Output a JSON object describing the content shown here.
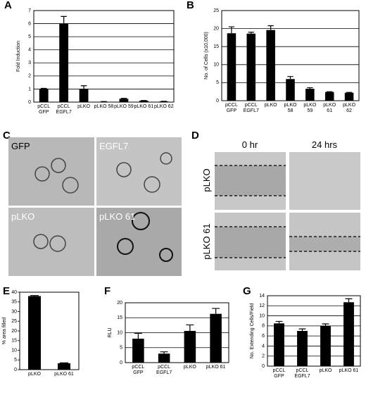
{
  "chart_data": [
    {
      "type": "bar",
      "panel_label": "A",
      "ylabel": "Fold Induction",
      "categories": [
        "pCCL\nGFP",
        "pCCL\nEGFL7",
        "pLKO",
        "pLKO 58",
        "pLKO 59",
        "pLKO 61",
        "pLKO 62"
      ],
      "values": [
        1,
        6,
        1,
        0.03,
        0.25,
        0.1,
        0.05
      ],
      "errors": [
        0.05,
        0.55,
        0.25,
        0.01,
        0.04,
        0.02,
        0.01
      ],
      "color": "#000000",
      "ylim": [
        0,
        7
      ],
      "yticks": [
        0,
        1,
        2,
        3,
        4,
        5,
        6,
        7
      ],
      "grid": true
    },
    {
      "type": "bar",
      "panel_label": "B",
      "ylabel": "No. of Cells (x10,000)",
      "categories": [
        "pCCL\nGFP",
        "pCCL\nEGFL7",
        "pLKO",
        "pLKO\n58",
        "pLKO\n59",
        "pLKO\n61",
        "pLKO\n62"
      ],
      "values": [
        18.7,
        18.6,
        19.6,
        6,
        3.3,
        2.4,
        2.2
      ],
      "errors": [
        1.8,
        0.4,
        1.2,
        0.7,
        0.3,
        0.1,
        0.1
      ],
      "color": "#000000",
      "ylim": [
        0,
        25
      ],
      "yticks": [
        0,
        5,
        10,
        15,
        20,
        25
      ],
      "grid": true
    },
    {
      "type": "bar",
      "panel_label": "E",
      "ylabel": "% area filled",
      "categories": [
        "pLKO",
        "pLKO 61"
      ],
      "values": [
        38,
        3.3
      ],
      "errors": [
        0.3,
        0.2
      ],
      "color": "#000000",
      "ylim": [
        0,
        40
      ],
      "yticks": [
        0,
        5,
        10,
        15,
        20,
        25,
        30,
        35,
        40
      ],
      "grid": false
    },
    {
      "type": "bar",
      "panel_label": "F",
      "ylabel": "RLU",
      "categories": [
        "pCCL\nGFP",
        "pCCL\nEGFL7",
        "pLKO",
        "pLKO 61"
      ],
      "values": [
        8,
        3,
        10.6,
        16.3
      ],
      "errors": [
        1.8,
        0.6,
        2,
        1.8
      ],
      "color": "#000000",
      "ylim": [
        0,
        20
      ],
      "yticks": [
        0,
        5,
        10,
        15,
        20
      ],
      "grid": true
    },
    {
      "type": "bar",
      "panel_label": "G",
      "ylabel": "No. Extending Cells/Field",
      "categories": [
        "pCCL\nGFP",
        "pCCL\nEGFL7",
        "pLKO",
        "pLKO 61"
      ],
      "values": [
        8.5,
        7,
        8,
        12.7
      ],
      "errors": [
        0.4,
        0.4,
        0.4,
        0.7
      ],
      "color": "#000000",
      "ylim": [
        0,
        14
      ],
      "yticks": [
        0,
        2,
        4,
        6,
        8,
        10,
        12,
        14
      ],
      "grid": true
    }
  ],
  "image_panels": {
    "C": {
      "label": "C",
      "captions": [
        "GFP",
        "EGFL7",
        "pLKO",
        "pLKO 61"
      ]
    },
    "D": {
      "label": "D",
      "columns": [
        "0 hr",
        "24 hrs"
      ],
      "rows": [
        "pLKO",
        "pLKO 61"
      ]
    }
  }
}
